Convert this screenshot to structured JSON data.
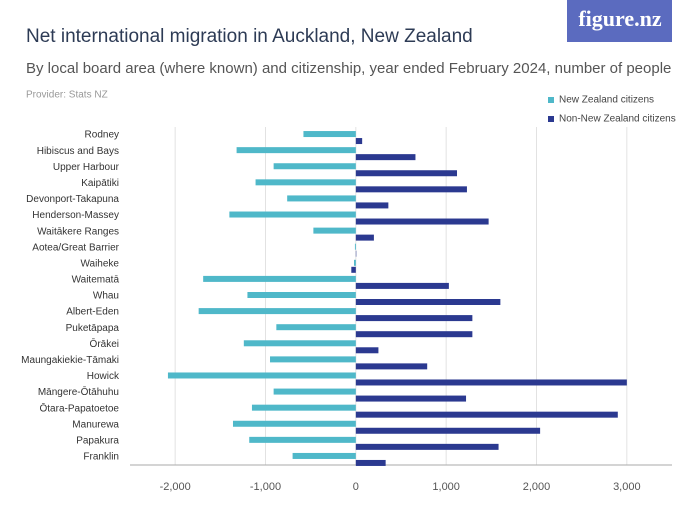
{
  "brand": "figure.nz",
  "chart_data": {
    "type": "hbar",
    "title": "Net international migration in Auckland, New Zealand",
    "subtitle": "By local board area (where known) and citizenship, year ended February 2024, number of people",
    "provider": "Provider: Stats NZ",
    "categories": [
      "Rodney",
      "Hibiscus and Bays",
      "Upper Harbour",
      "Kaipātiki",
      "Devonport-Takapuna",
      "Henderson-Massey",
      "Waitākere Ranges",
      "Aotea/Great Barrier",
      "Waiheke",
      "Waitematā",
      "Whau",
      "Albert-Eden",
      "Puketāpapa",
      "Ōrākei",
      "Maungakiekie-Tāmaki",
      "Howick",
      "Māngere-Ōtāhuhu",
      "Ōtara-Papatoetoe",
      "Manurewa",
      "Papakura",
      "Franklin"
    ],
    "series": [
      {
        "name": "New Zealand citizens",
        "color": "#4fb8c9",
        "values": [
          -580,
          -1320,
          -910,
          -1110,
          -760,
          -1400,
          -470,
          -10,
          -20,
          -1690,
          -1200,
          -1740,
          -880,
          -1240,
          -950,
          -2080,
          -910,
          -1150,
          -1360,
          -1180,
          -700
        ]
      },
      {
        "name": "Non-New Zealand citizens",
        "color": "#2b3990",
        "values": [
          70,
          660,
          1120,
          1230,
          360,
          1470,
          200,
          5,
          -50,
          1030,
          1600,
          1290,
          1290,
          250,
          790,
          3000,
          1220,
          2900,
          2040,
          1580,
          330
        ]
      }
    ],
    "xlim": [
      -2500,
      3500
    ],
    "xticks": [
      {
        "value": -2000,
        "label": "-2,000"
      },
      {
        "value": -1000,
        "label": "-1,000"
      },
      0,
      {
        "value": 1000,
        "label": "1,000"
      },
      {
        "value": 2000,
        "label": "2,000"
      },
      {
        "value": 3000,
        "label": "3,000"
      }
    ],
    "grid": true,
    "legend": "top-right"
  }
}
